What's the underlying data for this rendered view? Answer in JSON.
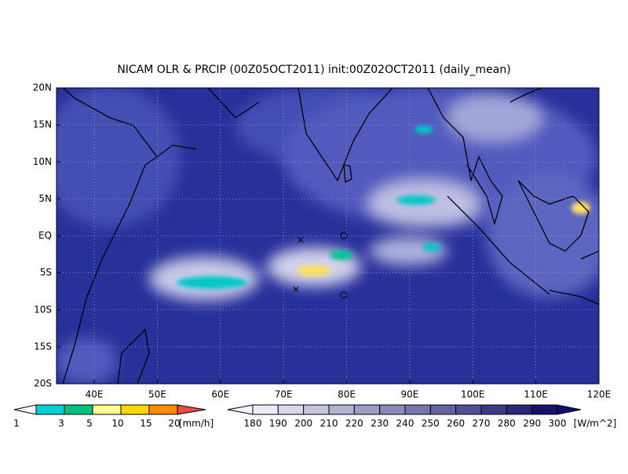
{
  "title": "NICAM OLR & PRCIP (00Z05OCT2011) init:00Z02OCT2011 (daily_mean)",
  "lat_labels": [
    "20N",
    "15N",
    "10N",
    "5N",
    "EQ",
    "5S",
    "10S",
    "15S",
    "20S"
  ],
  "lon_labels": [
    "40E",
    "50E",
    "60E",
    "70E",
    "80E",
    "90E",
    "100E",
    "110E",
    "120E"
  ],
  "precip_scale": {
    "labels": [
      "1",
      "3",
      "5",
      "10",
      "15",
      "20"
    ],
    "unit": "[mm/h]"
  },
  "olr_scale": {
    "labels": [
      "180",
      "190",
      "200",
      "210",
      "220",
      "230",
      "240",
      "250",
      "260",
      "270",
      "280",
      "290",
      "300"
    ],
    "unit": "[W/m^2]"
  }
}
